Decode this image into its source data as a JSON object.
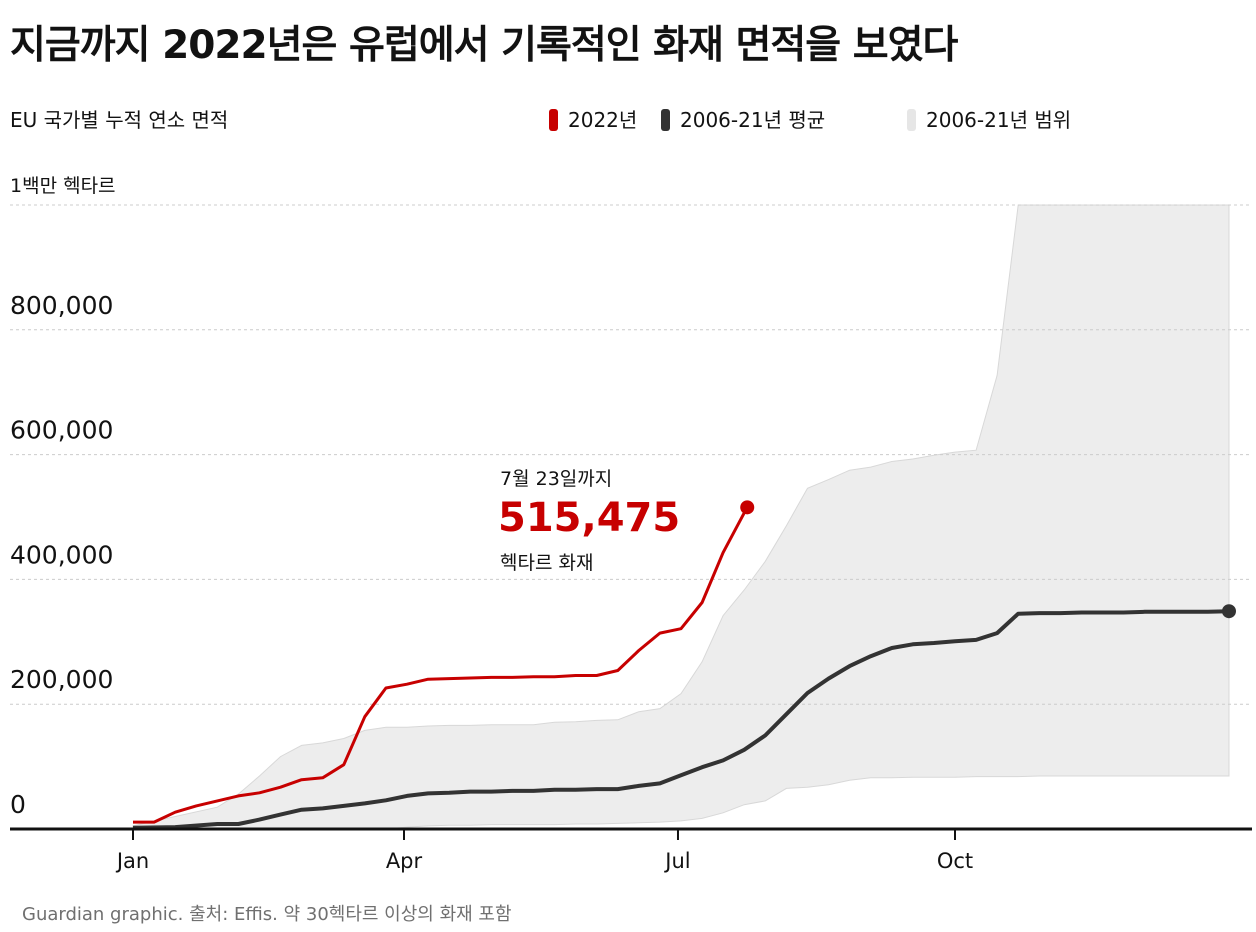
{
  "title": "지금까지 2022년은 유럽에서 기록적인 화재 면적을 보였다",
  "subtitle": "EU 국가별 누적 연소 면적",
  "legend": {
    "series_2022": "2022년",
    "series_avg": "2006-21년 평균",
    "series_range": "2006-21년 범위"
  },
  "colors": {
    "red": "#c70000",
    "dark": "#333333",
    "range": "#ededed",
    "grid": "#cccccc",
    "text": "#121212",
    "footer": "#707070"
  },
  "annotation": {
    "date": "7월 23일까지",
    "value": "515,475",
    "unit": "헥타르 화재"
  },
  "footer": "Guardian graphic. 출처: Effis. 약 30헥타르 이상의 화재 포함",
  "chart_data": {
    "type": "area",
    "title": "지금까지 2022년은 유럽에서 기록적인 화재 면적을 보였다",
    "subtitle": "EU 국가별 누적 연소 면적",
    "ylabel": "1백만 헥타르",
    "xlabel": "",
    "ylim": [
      0,
      1000000
    ],
    "xlim": [
      0,
      365
    ],
    "y_ticks": [
      0,
      200000,
      400000,
      600000,
      800000,
      1000000
    ],
    "y_tick_labels": [
      "0",
      "200,000",
      "400,000",
      "600,000",
      "800,000",
      "1백만 헥타르"
    ],
    "x_ticks": [
      {
        "day": 0,
        "label": "Jan"
      },
      {
        "day": 90,
        "label": "Apr"
      },
      {
        "day": 181,
        "label": "Jul"
      },
      {
        "day": 273,
        "label": "Oct"
      }
    ],
    "series": [
      {
        "name": "2022년",
        "x": [
          0,
          7,
          14,
          21,
          28,
          35,
          42,
          49,
          56,
          63,
          70,
          77,
          84,
          91,
          98,
          105,
          112,
          119,
          126,
          133,
          140,
          147,
          154,
          161,
          168,
          175,
          182,
          189,
          196,
          204
        ],
        "values": [
          11000,
          11000,
          27000,
          37000,
          45000,
          53000,
          58000,
          67000,
          79000,
          82000,
          103000,
          180000,
          226000,
          232000,
          240000,
          241000,
          242000,
          243000,
          243000,
          244000,
          244000,
          246000,
          246000,
          254000,
          286000,
          314000,
          321000,
          363000,
          443000,
          515475
        ]
      },
      {
        "name": "2006-21년 평균",
        "x": [
          0,
          14,
          28,
          35,
          42,
          49,
          56,
          63,
          70,
          77,
          84,
          91,
          98,
          105,
          112,
          119,
          126,
          133,
          140,
          147,
          154,
          161,
          168,
          175,
          182,
          189,
          196,
          203,
          210,
          217,
          224,
          231,
          238,
          245,
          252,
          259,
          266,
          273,
          280,
          287,
          294,
          301,
          308,
          315,
          322,
          329,
          336,
          343,
          350,
          357,
          364
        ],
        "values": [
          2000,
          3000,
          8000,
          8000,
          15000,
          23000,
          31000,
          33000,
          37000,
          41000,
          46000,
          53000,
          57000,
          58000,
          60000,
          60000,
          61000,
          61000,
          63000,
          63000,
          64000,
          64000,
          69000,
          73000,
          86000,
          99000,
          110000,
          127000,
          150000,
          184000,
          218000,
          241000,
          261000,
          277000,
          290000,
          296000,
          298000,
          301000,
          303000,
          314000,
          345000,
          346000,
          346000,
          347000,
          347000,
          347000,
          348000,
          348000,
          348000,
          348000,
          349000
        ]
      },
      {
        "name": "2006-21년 범위 (상한)",
        "x": [
          0,
          14,
          28,
          35,
          42,
          49,
          56,
          63,
          70,
          77,
          84,
          91,
          98,
          105,
          112,
          119,
          126,
          133,
          140,
          147,
          154,
          161,
          168,
          175,
          182,
          189,
          196,
          203,
          210,
          217,
          224,
          231,
          238,
          245,
          252,
          259,
          266,
          273,
          280,
          287,
          294,
          301,
          308,
          315,
          322,
          329,
          336,
          343,
          350,
          357,
          364
        ],
        "values": [
          5000,
          20000,
          35000,
          56000,
          85000,
          116000,
          134000,
          138000,
          145000,
          158000,
          163000,
          163000,
          165000,
          166000,
          166000,
          167000,
          167000,
          167000,
          171000,
          172000,
          174000,
          175000,
          188000,
          193000,
          217000,
          268000,
          342000,
          383000,
          429000,
          486000,
          546000,
          560000,
          575000,
          580000,
          589000,
          593000,
          599000,
          604000,
          607000,
          727000,
          1000000,
          1000000,
          1000000,
          1000000,
          1000000,
          1000000,
          1000000,
          1000000,
          1000000,
          1000000,
          1000000
        ]
      },
      {
        "name": "2006-21년 범위 (하한)",
        "x": [
          0,
          14,
          28,
          35,
          42,
          49,
          56,
          63,
          70,
          77,
          84,
          91,
          98,
          105,
          112,
          119,
          126,
          133,
          140,
          147,
          154,
          161,
          168,
          175,
          182,
          189,
          196,
          203,
          210,
          217,
          224,
          231,
          238,
          245,
          252,
          259,
          266,
          273,
          280,
          287,
          294,
          301,
          308,
          315,
          322,
          329,
          336,
          343,
          350,
          357,
          364
        ],
        "values": [
          0,
          0,
          0,
          0,
          0,
          0,
          0,
          0,
          0,
          0,
          0,
          3000,
          5000,
          6000,
          6000,
          7000,
          7000,
          7000,
          7000,
          8000,
          8000,
          9000,
          10000,
          11000,
          13000,
          17000,
          26000,
          39000,
          45000,
          65000,
          67000,
          71000,
          78000,
          82000,
          82000,
          83000,
          83000,
          83000,
          84000,
          84000,
          84000,
          85000,
          85000,
          85000,
          85000,
          85000,
          85000,
          85000,
          85000,
          85000,
          85000
        ]
      }
    ],
    "annotation": {
      "day": 204,
      "value": 515475,
      "text": "7월 23일까지 515,475 헥타르 화재"
    }
  }
}
